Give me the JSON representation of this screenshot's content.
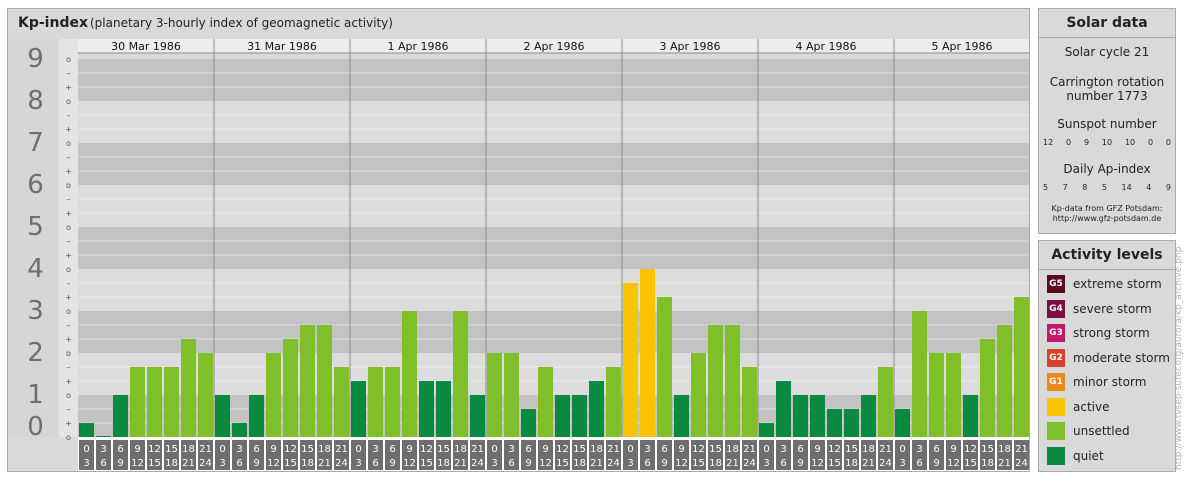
{
  "header": {
    "title": "Kp-index",
    "subtitle": "(planetary 3-hourly index of geomagnetic activity)"
  },
  "chart_data": {
    "type": "bar",
    "title": "Kp-index",
    "subtitle": "(planetary 3-hourly index of geomagnetic activity)",
    "ylim": [
      0,
      9
    ],
    "y_ticks": [
      "0",
      "1",
      "2",
      "3",
      "4",
      "5",
      "6",
      "7",
      "8",
      "9"
    ],
    "minor_ticks": [
      "+",
      "o",
      "–"
    ],
    "days": [
      "30 Mar 1986",
      "31 Mar 1986",
      "1 Apr 1986",
      "2 Apr 1986",
      "3 Apr 1986",
      "4 Apr 1986",
      "5 Apr 1986"
    ],
    "interval_top": [
      "0",
      "3",
      "6",
      "9",
      "12",
      "15",
      "18",
      "21"
    ],
    "interval_bottom": [
      "3",
      "6",
      "9",
      "12",
      "15",
      "18",
      "21",
      "24"
    ],
    "values": [
      [
        0.333,
        0.0,
        1.0,
        1.667,
        1.667,
        1.667,
        2.333,
        2.0
      ],
      [
        1.0,
        0.333,
        1.0,
        2.0,
        2.333,
        2.667,
        2.667,
        1.667
      ],
      [
        1.333,
        1.667,
        1.667,
        3.0,
        1.333,
        1.333,
        3.0,
        1.0
      ],
      [
        2.0,
        2.0,
        0.667,
        1.667,
        1.0,
        1.0,
        1.333,
        1.667
      ],
      [
        3.667,
        4.0,
        3.333,
        1.0,
        2.0,
        2.667,
        2.667,
        1.667
      ],
      [
        0.333,
        1.333,
        1.0,
        1.0,
        0.667,
        0.667,
        1.0,
        1.667
      ],
      [
        0.667,
        3.0,
        2.0,
        2.0,
        1.0,
        2.333,
        2.667,
        3.333
      ]
    ],
    "colors": {
      "quiet": "#0a8a40",
      "unsettled": "#7fbf2a",
      "active": "#f9c300",
      "bands_dark": "#c3c3c3",
      "bands_light": "#dcdcdc",
      "axis_band": "#6e6e6e"
    }
  },
  "solar": {
    "title": "Solar data",
    "cycle": "Solar cycle 21",
    "carrington_line1": "Carrington rotation",
    "carrington_line2": "number 1773",
    "sunspot_label": "Sunspot number",
    "sunspots": [
      "12",
      "0",
      "9",
      "10",
      "10",
      "0",
      "0"
    ],
    "ap_label": "Daily Ap-index",
    "ap": [
      "5",
      "7",
      "8",
      "5",
      "14",
      "4",
      "9"
    ],
    "credit_line1": "Kp-data from GFZ Potsdam:",
    "credit_line2": "http://www.gfz-potsdam.de"
  },
  "activity": {
    "title": "Activity levels",
    "levels": [
      {
        "code": "G5",
        "label": "extreme storm",
        "color": "#5a0a2a"
      },
      {
        "code": "G4",
        "label": "severe storm",
        "color": "#7a1042"
      },
      {
        "code": "G3",
        "label": "strong storm",
        "color": "#c0186b"
      },
      {
        "code": "G2",
        "label": "moderate storm",
        "color": "#d6432a"
      },
      {
        "code": "G1",
        "label": "minor storm",
        "color": "#ec8a1e"
      },
      {
        "code": "",
        "label": "active",
        "color": "#f9c300"
      },
      {
        "code": "",
        "label": "unsettled",
        "color": "#7fbf2a"
      },
      {
        "code": "",
        "label": "quiet",
        "color": "#0a8a40"
      }
    ]
  },
  "watermark": "http://www.tvsep-sufer.org/aurora/kp_archive.php"
}
